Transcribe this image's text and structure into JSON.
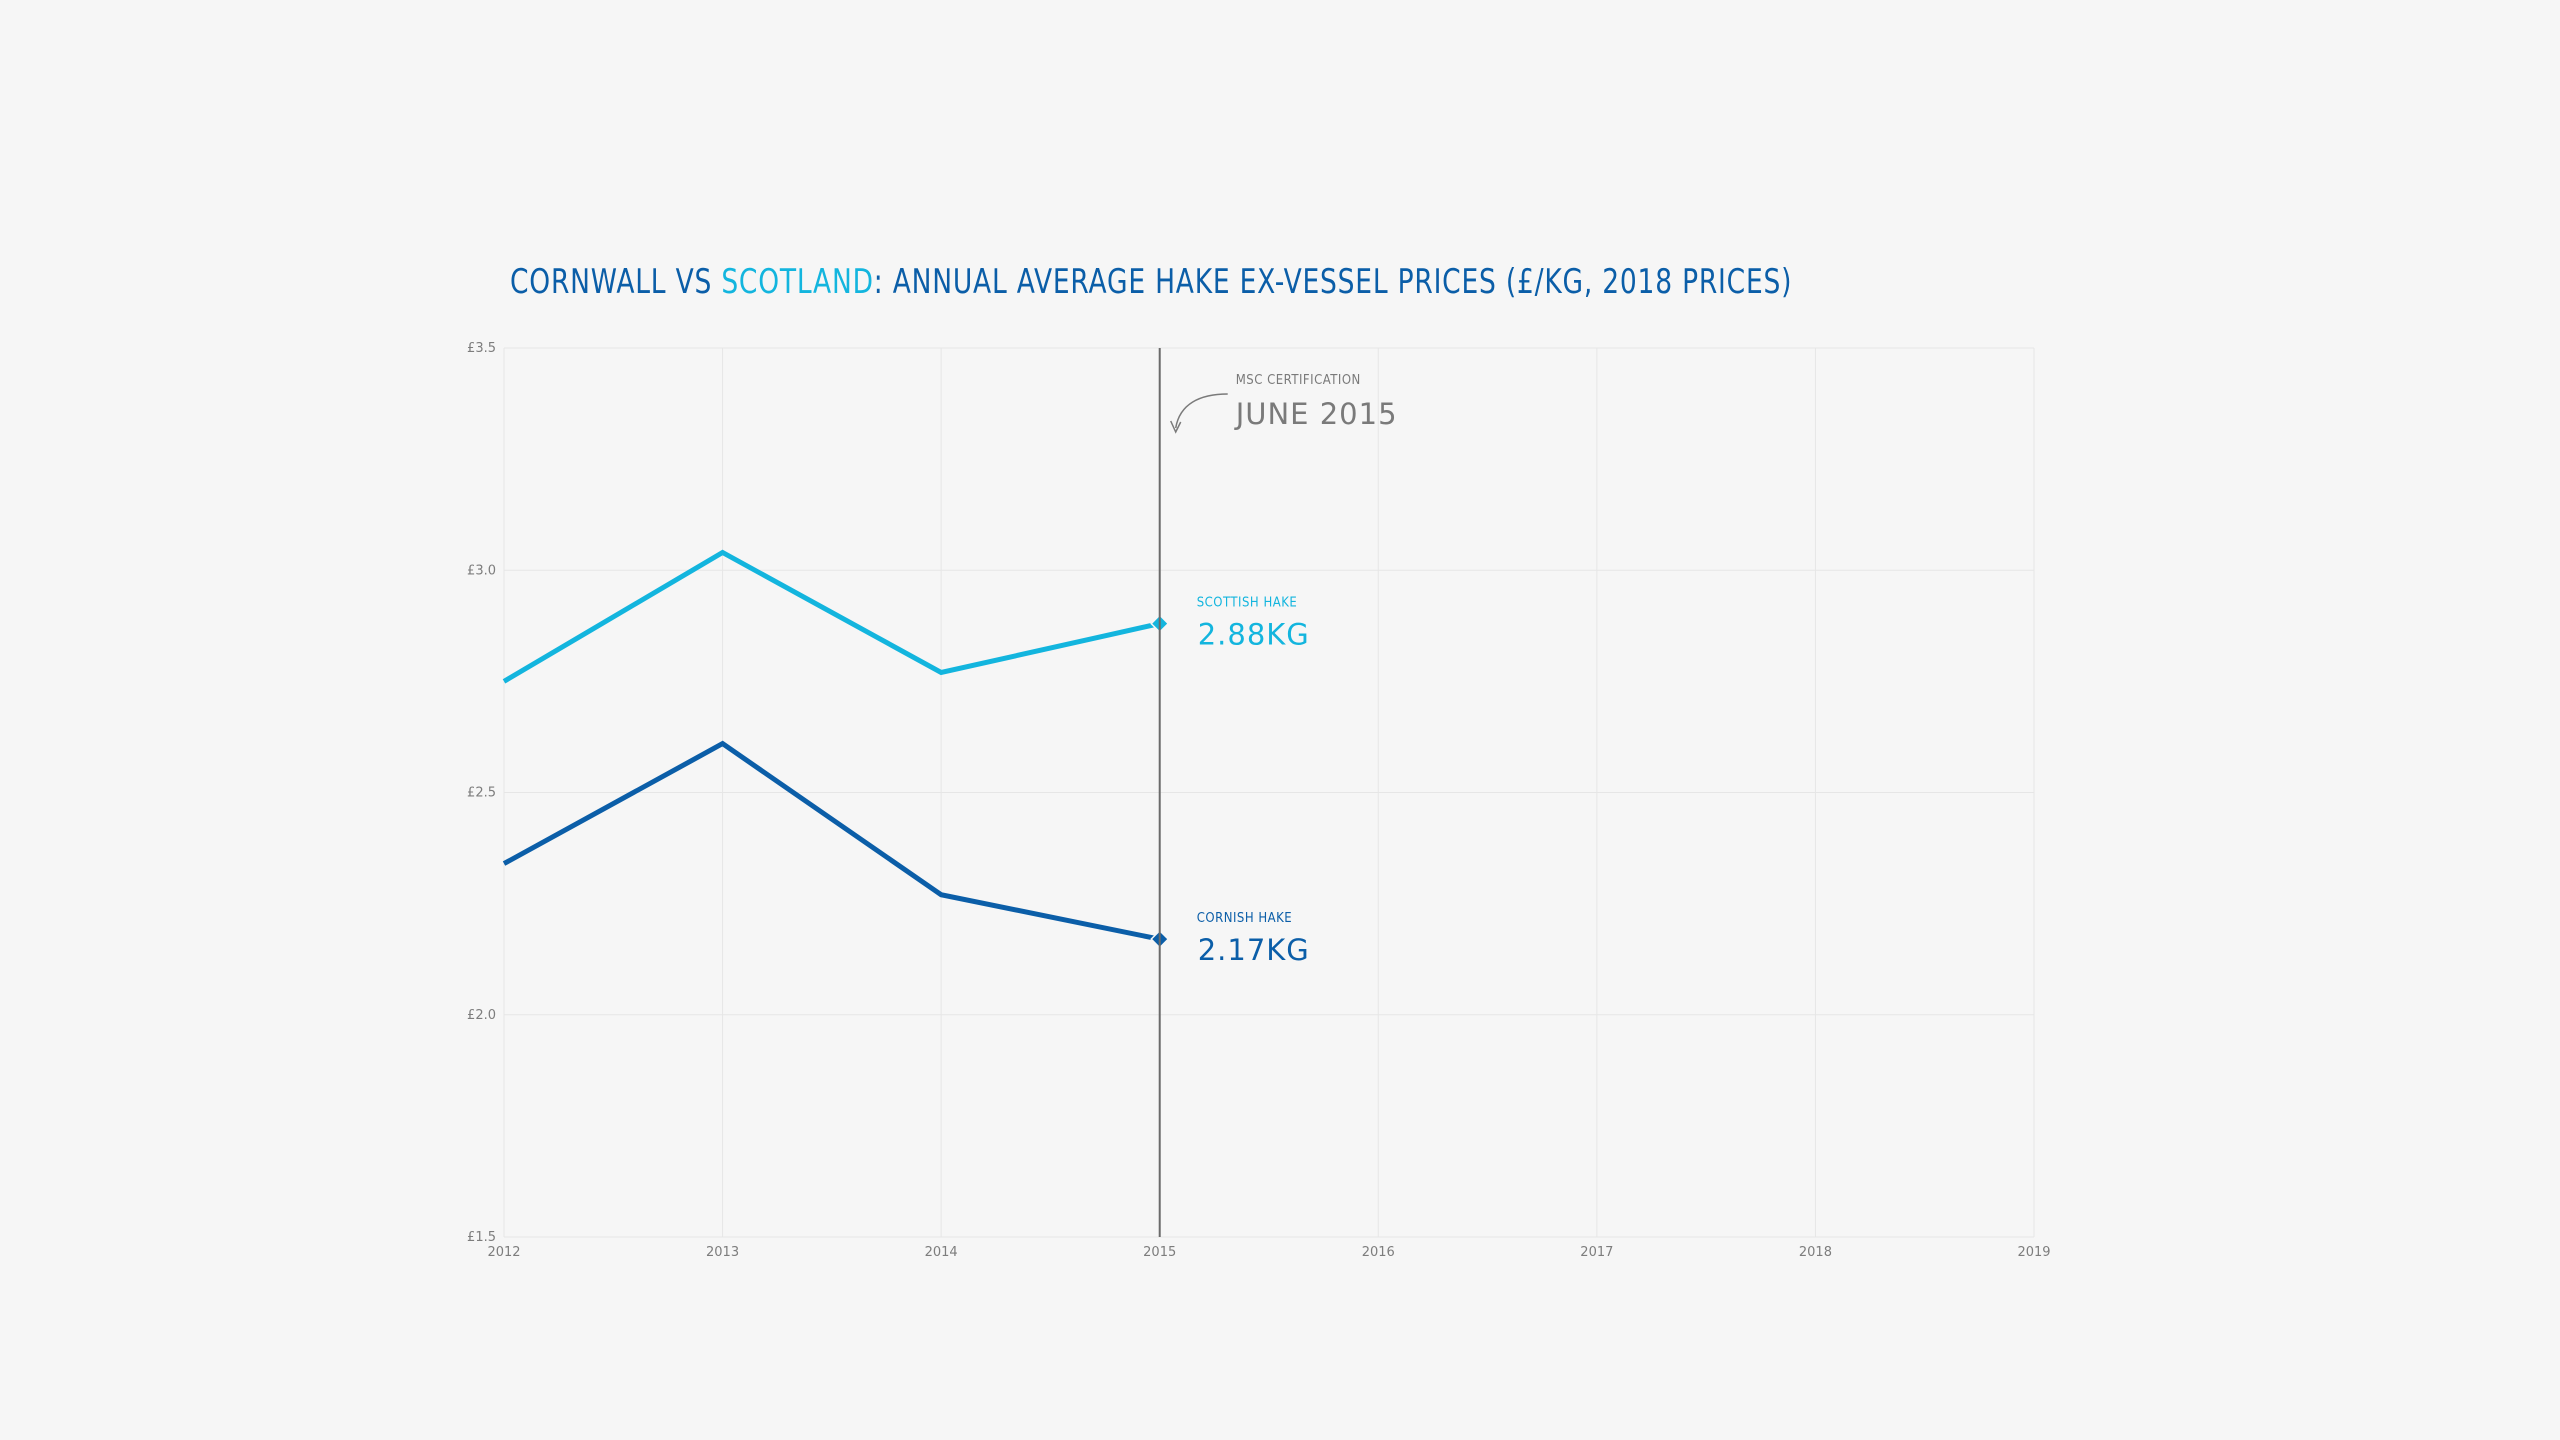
{
  "title": {
    "part1": "CORNWALL VS ",
    "part2": "SCOTLAND",
    "part3": ": ANNUAL AVERAGE HAKE EX-VESSEL PRICES (£/KG, 2018 PRICES)"
  },
  "colors": {
    "scottish": "#13b5de",
    "cornish": "#0b5ea8",
    "marker_line": "#6b6b6b",
    "grid": "#e6e6e6",
    "annotation": "#7a7a7a"
  },
  "chart_data": {
    "type": "line",
    "title": "CORNWALL VS SCOTLAND: ANNUAL AVERAGE HAKE EX-VESSEL PRICES (£/KG, 2018 PRICES)",
    "xlabel": "",
    "ylabel": "",
    "x": [
      2012,
      2013,
      2014,
      2015
    ],
    "xlim": [
      2012,
      2019
    ],
    "xticks": [
      "2012",
      "2013",
      "2014",
      "2015",
      "2016",
      "2017",
      "2018",
      "2019"
    ],
    "ylim": [
      1.5,
      3.5
    ],
    "yticks": [
      1.5,
      2.0,
      2.5,
      3.0,
      3.5
    ],
    "ytick_labels": [
      "£1.5",
      "£2.0",
      "£2.5",
      "£3.0",
      "£3.5"
    ],
    "grid": true,
    "series": [
      {
        "name": "SCOTTISH HAKE",
        "values": [
          2.75,
          3.04,
          2.77,
          2.88
        ],
        "end_label": "2.88KG"
      },
      {
        "name": "CORNISH HAKE",
        "values": [
          2.34,
          2.61,
          2.27,
          2.17
        ],
        "end_label": "2.17KG"
      }
    ],
    "annotations": [
      {
        "x": 2015,
        "label_small": "MSC CERTIFICATION",
        "label_big": "JUNE 2015"
      }
    ]
  }
}
